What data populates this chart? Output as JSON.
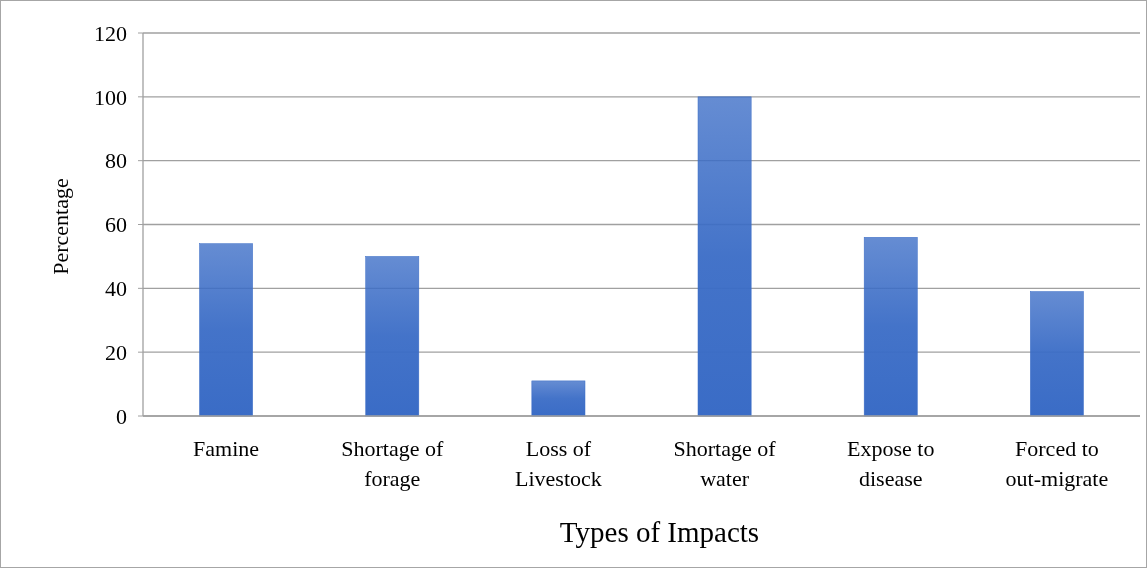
{
  "chart_data": {
    "type": "bar",
    "xlabel": "Types of Impacts",
    "ylabel": "Percentage",
    "categories": [
      "Famine",
      "Shortage of forage",
      "Loss of Livestock",
      "Shortage of water",
      "Expose to disease",
      "Forced to out-migrate"
    ],
    "values": [
      54,
      50,
      11,
      100,
      56,
      39
    ],
    "color": "#3a6cc6",
    "ylim": [
      0,
      120
    ],
    "yticks": [
      0,
      20,
      40,
      60,
      80,
      100,
      120
    ],
    "grid": "y"
  }
}
